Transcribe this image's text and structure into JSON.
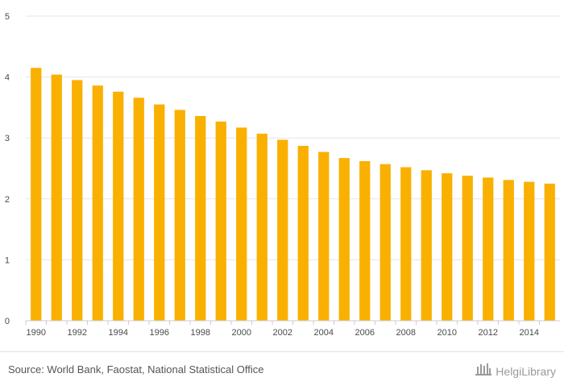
{
  "chart_data": {
    "type": "bar",
    "title": "",
    "xlabel": "",
    "ylabel": "",
    "categories": [
      "1990",
      "1991",
      "1992",
      "1993",
      "1994",
      "1995",
      "1996",
      "1997",
      "1998",
      "1999",
      "2000",
      "2001",
      "2002",
      "2003",
      "2004",
      "2005",
      "2006",
      "2007",
      "2008",
      "2009",
      "2010",
      "2011",
      "2012",
      "2013",
      "2014",
      "2015"
    ],
    "x_tick_labels": [
      "1990",
      "1992",
      "1994",
      "1996",
      "1998",
      "2000",
      "2002",
      "2004",
      "2006",
      "2008",
      "2010",
      "2012",
      "2014"
    ],
    "y_tick_labels": [
      "0",
      "1",
      "2",
      "3",
      "4",
      "5"
    ],
    "values": [
      4.15,
      4.04,
      3.95,
      3.86,
      3.76,
      3.66,
      3.55,
      3.46,
      3.36,
      3.27,
      3.17,
      3.07,
      2.97,
      2.87,
      2.77,
      2.67,
      2.62,
      2.57,
      2.52,
      2.47,
      2.42,
      2.38,
      2.35,
      2.31,
      2.28,
      2.25
    ],
    "ylim": [
      0,
      5
    ],
    "grid": true,
    "bar_color": "#F9B000"
  },
  "footer": {
    "source": "Source: World Bank, Faostat, National Statistical Office",
    "brand": "HelgiLibrary"
  },
  "colors": {
    "grid": "#e6e6e6",
    "axis": "#cccccc",
    "brand_gray": "#9a9a9a"
  }
}
